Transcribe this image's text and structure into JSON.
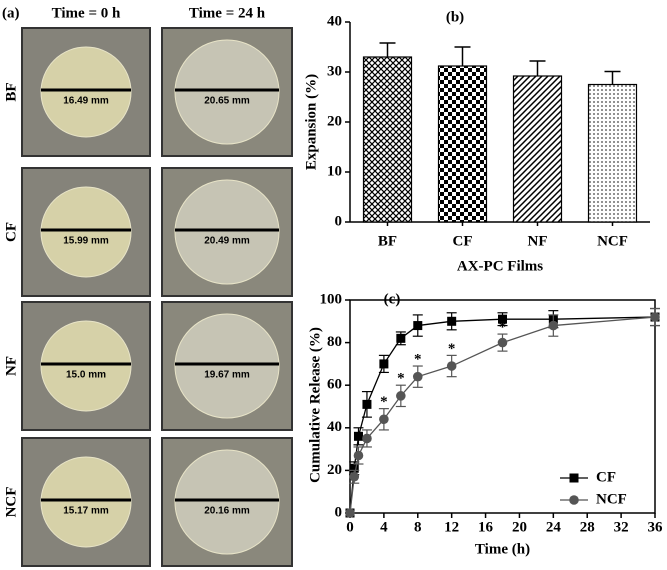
{
  "panel_a": {
    "label": "(a)",
    "columns": [
      "Time = 0 h",
      "Time = 24 h"
    ],
    "rows": [
      {
        "label": "BF",
        "measurements": [
          "16.49 mm",
          "20.65 mm"
        ]
      },
      {
        "label": "CF",
        "measurements": [
          "15.99 mm",
          "20.49 mm"
        ]
      },
      {
        "label": "NF",
        "measurements": [
          "15.0 mm",
          "19.67 mm"
        ]
      },
      {
        "label": "NCF",
        "measurements": [
          "15.17 mm",
          "20.16 mm"
        ]
      }
    ]
  },
  "chart_data": [
    {
      "type": "bar",
      "label": "(b)",
      "y_label": "Expansion (%)",
      "x_label": "AX-PC Films",
      "categories": [
        "BF",
        "CF",
        "NF",
        "NCF"
      ],
      "values": [
        33,
        31.2,
        29.2,
        27.5
      ],
      "errors": [
        2.8,
        3.8,
        3.0,
        2.6
      ],
      "color": "#000000",
      "ylim": [
        0,
        40
      ],
      "yticks": [
        0,
        10,
        20,
        30,
        40
      ]
    },
    {
      "type": "line",
      "label": "(c)",
      "y_label": "Cumulative Release (%)",
      "x_label": "Time (h)",
      "x": [
        0,
        0.5,
        1,
        2,
        4,
        6,
        8,
        12,
        18,
        24,
        36
      ],
      "series": [
        {
          "name": "CF",
          "color": "#000000",
          "marker": "square",
          "values": [
            0,
            21,
            36,
            51,
            70,
            82,
            88,
            90,
            91,
            91,
            92
          ],
          "errors": [
            0,
            3,
            4,
            6,
            4,
            3,
            5,
            4,
            3,
            4,
            4
          ]
        },
        {
          "name": "NCF",
          "color": "#555555",
          "marker": "circle",
          "values": [
            0,
            17,
            27,
            35,
            44,
            55,
            64,
            69,
            80,
            88,
            92
          ],
          "errors": [
            0,
            3,
            4,
            4,
            5,
            5,
            5,
            5,
            4,
            5,
            4
          ]
        }
      ],
      "annotations": [
        {
          "text": "*",
          "x": 4
        },
        {
          "text": "*",
          "x": 6
        },
        {
          "text": "*",
          "x": 8
        },
        {
          "text": "*",
          "x": 12
        },
        {
          "text": "*",
          "x": 18
        }
      ],
      "xlim": [
        0,
        36
      ],
      "xticks": [
        0,
        4,
        8,
        12,
        16,
        20,
        24,
        28,
        32,
        36
      ],
      "ylim": [
        0,
        100
      ],
      "yticks": [
        0,
        20,
        40,
        60,
        80,
        100
      ],
      "legend": "lower right"
    }
  ]
}
